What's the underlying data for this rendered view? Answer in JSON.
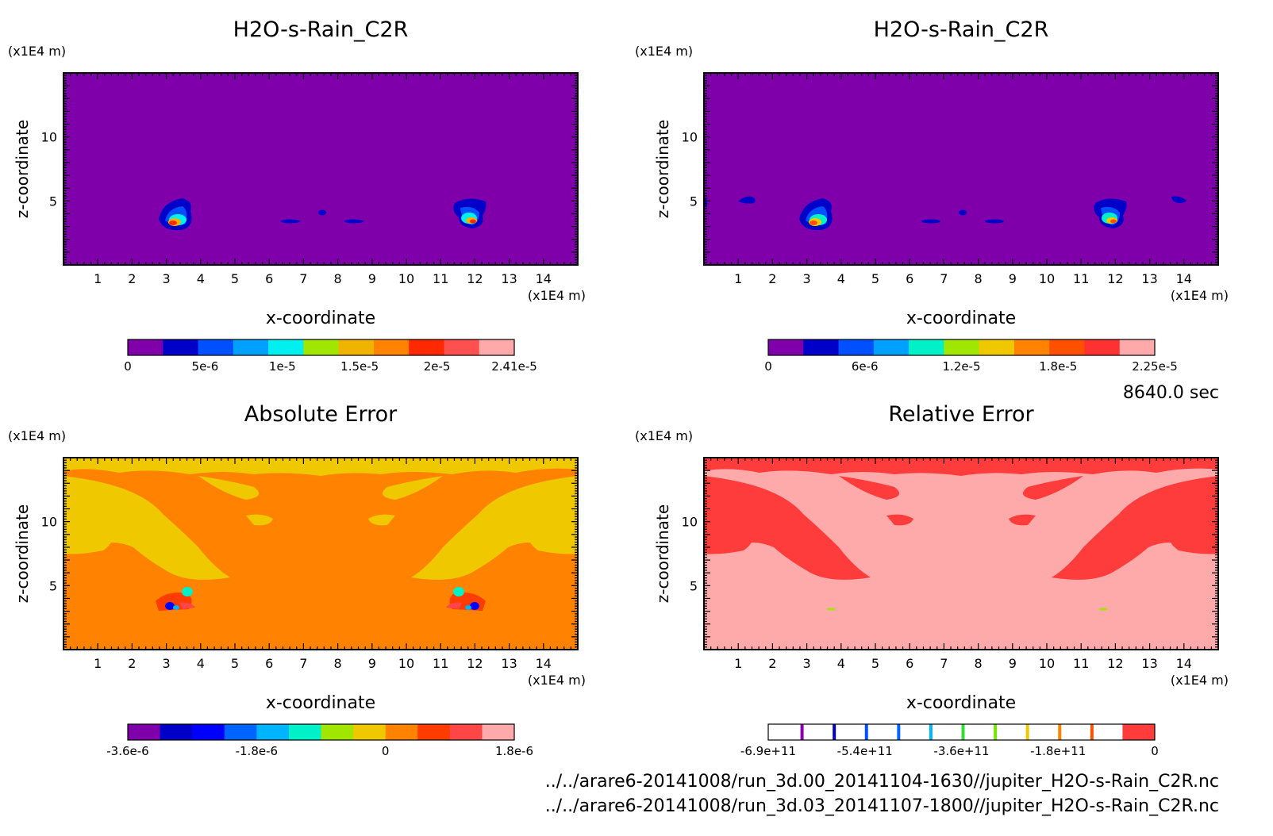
{
  "time_label": "8640.0 sec",
  "files": [
    "../../arare6-20141008/run_3d.00_20141104-1630//jupiter_H2O-s-Rain_C2R.nc",
    "../../arare6-20141008/run_3d.03_20141107-1800//jupiter_H2O-s-Rain_C2R.nc"
  ],
  "chart_data": [
    {
      "type": "heatmap",
      "title": "H2O-s-Rain_C2R",
      "xlabel": "x-coordinate",
      "ylabel": "z-coordinate",
      "x_unit": "(x1E4 m)",
      "y_unit": "(x1E4 m)",
      "xlim": [
        0,
        15
      ],
      "ylim": [
        0,
        15
      ],
      "xticks": [
        "1",
        "2",
        "3",
        "4",
        "5",
        "6",
        "7",
        "8",
        "9",
        "10",
        "11",
        "12",
        "13",
        "14"
      ],
      "yticks": [
        "5",
        "10"
      ],
      "background_color": "#7f00aa",
      "colorbar": {
        "colors": [
          "#7f00aa",
          "#0000c8",
          "#0050ff",
          "#00a0ff",
          "#00f0f0",
          "#a0e600",
          "#f0b400",
          "#ff8200",
          "#ff2800",
          "#ff5050",
          "#ffaaaa"
        ],
        "labels": [
          "0",
          "5e-6",
          "1e-5",
          "1.5e-5",
          "2e-5",
          "2.41e-5"
        ]
      }
    },
    {
      "type": "heatmap",
      "title": "H2O-s-Rain_C2R",
      "xlabel": "x-coordinate",
      "ylabel": "z-coordinate",
      "x_unit": "(x1E4 m)",
      "y_unit": "(x1E4 m)",
      "xlim": [
        0,
        15
      ],
      "ylim": [
        0,
        15
      ],
      "xticks": [
        "1",
        "2",
        "3",
        "4",
        "5",
        "6",
        "7",
        "8",
        "9",
        "10",
        "11",
        "12",
        "13",
        "14"
      ],
      "yticks": [
        "5",
        "10"
      ],
      "background_color": "#7f00aa",
      "colorbar": {
        "colors": [
          "#7f00aa",
          "#0000c8",
          "#0050ff",
          "#00a0ff",
          "#00f0c8",
          "#a0e600",
          "#f0c800",
          "#ff8200",
          "#ff5000",
          "#ff3232",
          "#ffaaaa"
        ],
        "labels": [
          "0",
          "6e-6",
          "1.2e-5",
          "1.8e-5",
          "2.25e-5"
        ]
      }
    },
    {
      "type": "heatmap",
      "title": "Absolute Error",
      "xlabel": "x-coordinate",
      "ylabel": "z-coordinate",
      "x_unit": "(x1E4 m)",
      "y_unit": "(x1E4 m)",
      "xlim": [
        0,
        15
      ],
      "ylim": [
        0,
        15
      ],
      "xticks": [
        "1",
        "2",
        "3",
        "4",
        "5",
        "6",
        "7",
        "8",
        "9",
        "10",
        "11",
        "12",
        "13",
        "14"
      ],
      "yticks": [
        "5",
        "10"
      ],
      "background_color": "#ff8200",
      "colorbar": {
        "colors": [
          "#7f00aa",
          "#0000c8",
          "#0000ff",
          "#0064ff",
          "#00b4ff",
          "#00f0c8",
          "#a0e600",
          "#f0c800",
          "#ff8200",
          "#ff3c00",
          "#ff4646",
          "#ffaaaa"
        ],
        "labels": [
          "-3.6e-6",
          "-1.8e-6",
          "0",
          "1.8e-6"
        ]
      }
    },
    {
      "type": "heatmap",
      "title": "Relative Error",
      "xlabel": "x-coordinate",
      "ylabel": "z-coordinate",
      "x_unit": "(x1E4 m)",
      "y_unit": "(x1E4 m)",
      "xlim": [
        0,
        15
      ],
      "ylim": [
        0,
        15
      ],
      "xticks": [
        "1",
        "2",
        "3",
        "4",
        "5",
        "6",
        "7",
        "8",
        "9",
        "10",
        "11",
        "12",
        "13",
        "14"
      ],
      "yticks": [
        "5",
        "10"
      ],
      "background_color": "#ffaaaa",
      "colorbar": {
        "colors": [
          "#ffffff",
          "#ffffff",
          "#ffffff",
          "#ffffff",
          "#ffffff",
          "#ffffff",
          "#ffffff",
          "#ffffff",
          "#ffffff",
          "#ffffff",
          "#ffffff",
          "#ff3c3c"
        ],
        "labels": [
          "-6.9e+11",
          "-5.4e+11",
          "-3.6e+11",
          "-1.8e+11",
          "0"
        ]
      }
    }
  ]
}
